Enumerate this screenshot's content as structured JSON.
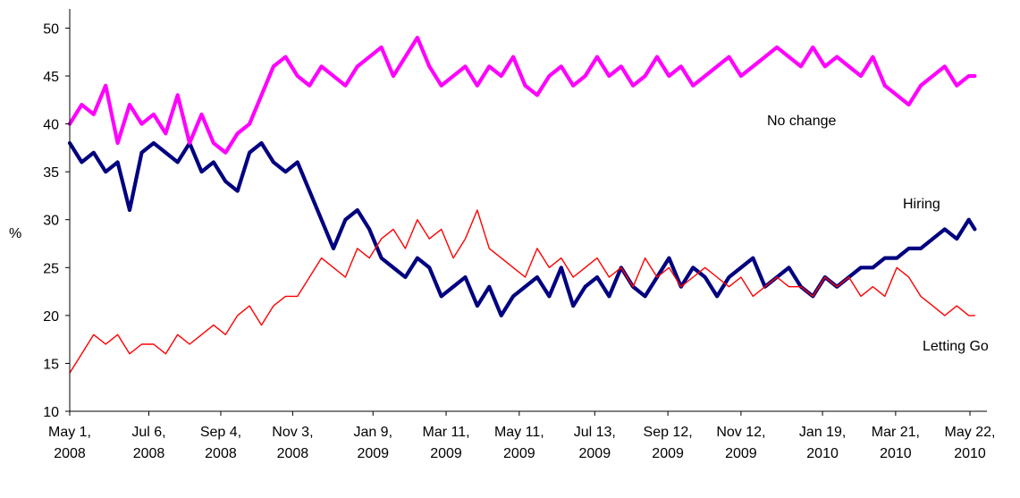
{
  "chart_data": {
    "type": "line",
    "title": "",
    "xlabel": "",
    "ylabel": "%",
    "ylim": [
      10,
      52
    ],
    "yticks": [
      10,
      15,
      20,
      25,
      30,
      35,
      40,
      45,
      50
    ],
    "grid": false,
    "legend": "none (series labelled directly on the plot)",
    "x_ticks": [
      {
        "date": "2008-05-01",
        "line1": "May 1,",
        "line2": "2008"
      },
      {
        "date": "2008-07-06",
        "line1": "Jul 6,",
        "line2": "2008"
      },
      {
        "date": "2008-09-04",
        "line1": "Sep 4,",
        "line2": "2008"
      },
      {
        "date": "2008-11-03",
        "line1": "Nov 3,",
        "line2": "2008"
      },
      {
        "date": "2009-01-09",
        "line1": "Jan 9,",
        "line2": "2009"
      },
      {
        "date": "2009-03-11",
        "line1": "Mar 11,",
        "line2": "2009"
      },
      {
        "date": "2009-05-11",
        "line1": "May 11,",
        "line2": "2009"
      },
      {
        "date": "2009-07-13",
        "line1": "Jul 13,",
        "line2": "2009"
      },
      {
        "date": "2009-09-12",
        "line1": "Sep 12,",
        "line2": "2009"
      },
      {
        "date": "2009-11-12",
        "line1": "Nov 12,",
        "line2": "2009"
      },
      {
        "date": "2010-01-19",
        "line1": "Jan 19,",
        "line2": "2010"
      },
      {
        "date": "2010-03-21",
        "line1": "Mar 21,",
        "line2": "2010"
      },
      {
        "date": "2010-05-22",
        "line1": "May 22,",
        "line2": "2010"
      }
    ],
    "x": [
      "2008-05-01",
      "2008-05-11",
      "2008-05-21",
      "2008-05-31",
      "2008-06-10",
      "2008-06-20",
      "2008-06-30",
      "2008-07-10",
      "2008-07-20",
      "2008-07-30",
      "2008-08-09",
      "2008-08-19",
      "2008-08-29",
      "2008-09-08",
      "2008-09-18",
      "2008-09-28",
      "2008-10-08",
      "2008-10-18",
      "2008-10-28",
      "2008-11-07",
      "2008-11-17",
      "2008-11-27",
      "2008-12-07",
      "2008-12-17",
      "2008-12-27",
      "2009-01-06",
      "2009-01-16",
      "2009-01-26",
      "2009-02-05",
      "2009-02-15",
      "2009-02-25",
      "2009-03-07",
      "2009-03-17",
      "2009-03-27",
      "2009-04-06",
      "2009-04-16",
      "2009-04-26",
      "2009-05-06",
      "2009-05-16",
      "2009-05-26",
      "2009-06-05",
      "2009-06-15",
      "2009-06-25",
      "2009-07-05",
      "2009-07-15",
      "2009-07-25",
      "2009-08-04",
      "2009-08-14",
      "2009-08-24",
      "2009-09-03",
      "2009-09-13",
      "2009-09-23",
      "2009-10-03",
      "2009-10-13",
      "2009-10-23",
      "2009-11-02",
      "2009-11-12",
      "2009-11-22",
      "2009-12-02",
      "2009-12-12",
      "2009-12-22",
      "2010-01-01",
      "2010-01-11",
      "2010-01-21",
      "2010-01-31",
      "2010-02-10",
      "2010-02-20",
      "2010-03-02",
      "2010-03-12",
      "2010-03-22",
      "2010-04-01",
      "2010-04-11",
      "2010-04-21",
      "2010-05-01",
      "2010-05-11",
      "2010-05-21",
      "2010-05-26"
    ],
    "series": [
      {
        "name": "Hiring",
        "color": "#000080",
        "stroke_width": 4.2,
        "values": [
          38,
          36,
          37,
          35,
          36,
          31,
          37,
          38,
          37,
          36,
          38,
          35,
          36,
          34,
          33,
          37,
          38,
          36,
          35,
          36,
          33,
          30,
          27,
          30,
          31,
          29,
          26,
          25,
          24,
          26,
          25,
          22,
          23,
          24,
          21,
          23,
          20,
          22,
          23,
          24,
          22,
          25,
          21,
          23,
          24,
          22,
          25,
          23,
          22,
          24,
          26,
          23,
          25,
          24,
          22,
          24,
          25,
          26,
          23,
          24,
          25,
          23,
          22,
          24,
          23,
          24,
          25,
          25,
          26,
          26,
          27,
          27,
          28,
          29,
          28,
          30,
          29
        ]
      },
      {
        "name": "No change",
        "color": "#ff00ff",
        "stroke_width": 4.2,
        "values": [
          40,
          42,
          41,
          44,
          38,
          42,
          40,
          41,
          39,
          43,
          38,
          41,
          38,
          37,
          39,
          40,
          43,
          46,
          47,
          45,
          44,
          46,
          45,
          44,
          46,
          47,
          48,
          45,
          47,
          49,
          46,
          44,
          45,
          46,
          44,
          46,
          45,
          47,
          44,
          43,
          45,
          46,
          44,
          45,
          47,
          45,
          46,
          44,
          45,
          47,
          45,
          46,
          44,
          45,
          46,
          47,
          45,
          46,
          47,
          48,
          47,
          46,
          48,
          46,
          47,
          46,
          45,
          47,
          44,
          43,
          42,
          44,
          45,
          46,
          44,
          45,
          45
        ]
      },
      {
        "name": "Letting Go",
        "color": "#ff0000",
        "stroke_width": 1.4,
        "values": [
          14,
          16,
          18,
          17,
          18,
          16,
          17,
          17,
          16,
          18,
          17,
          18,
          19,
          18,
          20,
          21,
          19,
          21,
          22,
          22,
          24,
          26,
          25,
          24,
          27,
          26,
          28,
          29,
          27,
          30,
          28,
          29,
          26,
          28,
          31,
          27,
          26,
          25,
          24,
          27,
          25,
          26,
          24,
          25,
          26,
          24,
          25,
          23,
          26,
          24,
          25,
          23,
          24,
          25,
          24,
          23,
          24,
          22,
          23,
          24,
          23,
          23,
          22,
          24,
          23,
          24,
          22,
          23,
          22,
          25,
          24,
          22,
          21,
          20,
          21,
          20,
          20
        ]
      }
    ]
  }
}
